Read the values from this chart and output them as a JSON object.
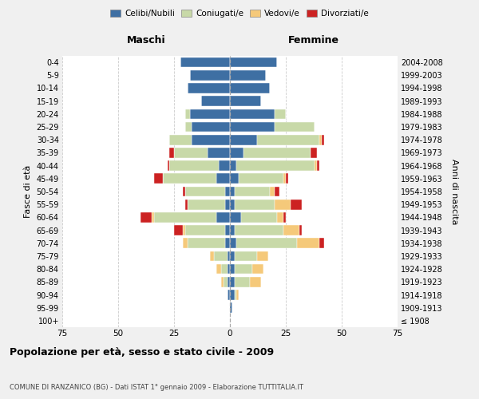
{
  "age_groups": [
    "100+",
    "95-99",
    "90-94",
    "85-89",
    "80-84",
    "75-79",
    "70-74",
    "65-69",
    "60-64",
    "55-59",
    "50-54",
    "45-49",
    "40-44",
    "35-39",
    "30-34",
    "25-29",
    "20-24",
    "15-19",
    "10-14",
    "5-9",
    "0-4"
  ],
  "birth_years": [
    "≤ 1908",
    "1909-1913",
    "1914-1918",
    "1919-1923",
    "1924-1928",
    "1929-1933",
    "1934-1938",
    "1939-1943",
    "1944-1948",
    "1949-1953",
    "1954-1958",
    "1959-1963",
    "1964-1968",
    "1969-1973",
    "1974-1978",
    "1979-1983",
    "1984-1988",
    "1989-1993",
    "1994-1998",
    "1999-2003",
    "2004-2008"
  ],
  "colors": {
    "celibi": "#3e6fa3",
    "coniugati": "#c8d9a8",
    "vedovi": "#f5c97a",
    "divorziati": "#cc2222"
  },
  "maschi": {
    "celibi": [
      0,
      0,
      1,
      1,
      1,
      1,
      2,
      2,
      6,
      2,
      2,
      6,
      5,
      10,
      17,
      17,
      18,
      13,
      19,
      18,
      22
    ],
    "coniugati": [
      0,
      0,
      0,
      2,
      3,
      6,
      17,
      18,
      28,
      17,
      18,
      24,
      22,
      15,
      10,
      3,
      2,
      0,
      0,
      0,
      0
    ],
    "vedovi": [
      0,
      0,
      0,
      1,
      2,
      2,
      2,
      1,
      1,
      0,
      0,
      0,
      0,
      0,
      0,
      0,
      0,
      0,
      0,
      0,
      0
    ],
    "divorziati": [
      0,
      0,
      0,
      0,
      0,
      0,
      0,
      4,
      5,
      1,
      1,
      4,
      1,
      2,
      0,
      0,
      0,
      0,
      0,
      0,
      0
    ]
  },
  "femmine": {
    "celibi": [
      0,
      1,
      2,
      2,
      2,
      2,
      3,
      2,
      5,
      2,
      2,
      4,
      3,
      6,
      12,
      20,
      20,
      14,
      18,
      16,
      21
    ],
    "coniugati": [
      0,
      0,
      1,
      7,
      8,
      10,
      27,
      22,
      16,
      18,
      16,
      20,
      35,
      30,
      28,
      18,
      5,
      0,
      0,
      0,
      0
    ],
    "vedovi": [
      0,
      0,
      1,
      5,
      5,
      5,
      10,
      7,
      3,
      7,
      2,
      1,
      1,
      0,
      1,
      0,
      0,
      0,
      0,
      0,
      0
    ],
    "divorziati": [
      0,
      0,
      0,
      0,
      0,
      0,
      2,
      1,
      1,
      5,
      2,
      1,
      1,
      3,
      1,
      0,
      0,
      0,
      0,
      0,
      0
    ]
  },
  "xlim": 75,
  "title": "Popolazione per età, sesso e stato civile - 2009",
  "subtitle": "COMUNE DI RANZANICO (BG) - Dati ISTAT 1° gennaio 2009 - Elaborazione TUTTITALIA.IT",
  "xlabel_left": "Maschi",
  "xlabel_right": "Femmine",
  "ylabel_left": "Fasce di età",
  "ylabel_right": "Anni di nascita",
  "legend_labels": [
    "Celibi/Nubili",
    "Coniugati/e",
    "Vedovi/e",
    "Divorziati/e"
  ],
  "bg_color": "#f0f0f0",
  "plot_bg_color": "#ffffff"
}
